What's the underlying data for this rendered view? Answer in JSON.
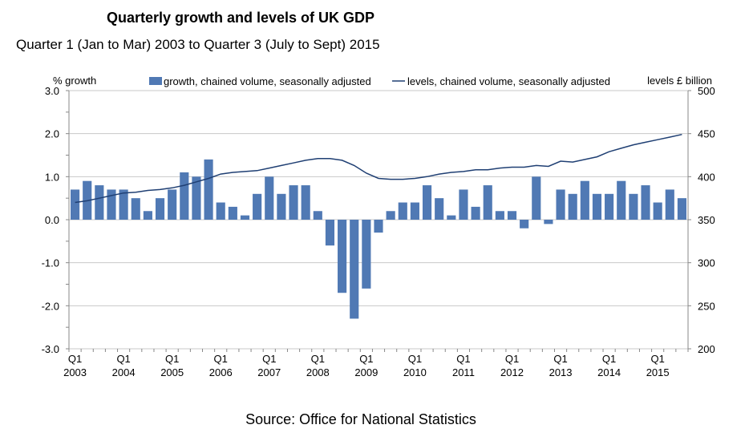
{
  "chart_data": {
    "type": "bar+line",
    "title": "Quarterly growth and levels of UK GDP",
    "subtitle": "Quarter 1 (Jan to Mar) 2003 to Quarter 3 (July to Sept) 2015",
    "source": "Source: Office for National Statistics",
    "ylabel_left": "% growth",
    "ylabel_right": "levels £ billion",
    "ylim_left": [
      -3,
      3
    ],
    "ylim_right": [
      200,
      500
    ],
    "yticks_left": [
      "3.0",
      "2.0",
      "1.0",
      "0.0",
      "-1.0",
      "-2.0",
      "-3.0"
    ],
    "yticks_right": [
      "500",
      "450",
      "400",
      "350",
      "300",
      "250",
      "200"
    ],
    "xtick_quarter": "Q1",
    "xtick_years": [
      "2003",
      "2004",
      "2005",
      "2006",
      "2007",
      "2008",
      "2009",
      "2010",
      "2011",
      "2012",
      "2013",
      "2014",
      "2015"
    ],
    "grid": true,
    "legend_position": "top",
    "series": [
      {
        "name": "growth, chained volume, seasonally adjusted",
        "type": "bar",
        "axis": "left",
        "color": "#5079b4",
        "values": [
          0.7,
          0.9,
          0.8,
          0.7,
          0.7,
          0.5,
          0.2,
          0.5,
          0.7,
          1.1,
          1.0,
          1.4,
          0.4,
          0.3,
          0.1,
          0.6,
          1.0,
          0.6,
          0.8,
          0.8,
          0.2,
          -0.6,
          -1.7,
          -2.3,
          -1.6,
          -0.3,
          0.2,
          0.4,
          0.4,
          0.8,
          0.5,
          0.1,
          0.7,
          0.3,
          0.8,
          0.2,
          0.2,
          -0.2,
          1.0,
          -0.1,
          0.7,
          0.6,
          0.9,
          0.6,
          0.6,
          0.9,
          0.6,
          0.8,
          0.4,
          0.7,
          0.5
        ]
      },
      {
        "name": "levels, chained volume, seasonally adjusted",
        "type": "line",
        "axis": "right",
        "color": "#1f3f73",
        "values": [
          370,
          372,
          375,
          378,
          381,
          382,
          384,
          385,
          387,
          390,
          394,
          398,
          403,
          405,
          406,
          407,
          410,
          413,
          416,
          419,
          421,
          421,
          419,
          413,
          404,
          398,
          397,
          397,
          398,
          400,
          403,
          405,
          406,
          408,
          408,
          410,
          411,
          411,
          413,
          412,
          418,
          417,
          420,
          423,
          429,
          433,
          437,
          440,
          443,
          446,
          449
        ]
      }
    ]
  }
}
